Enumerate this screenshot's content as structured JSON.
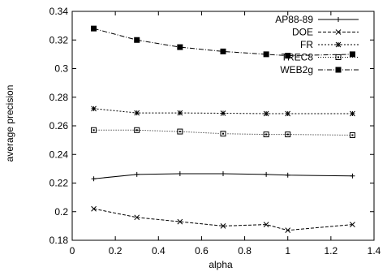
{
  "chart_data": {
    "type": "line",
    "title": "",
    "xlabel": "alpha",
    "ylabel": "average precision",
    "xlim": [
      0,
      1.4
    ],
    "ylim": [
      0.18,
      0.34
    ],
    "xticks": [
      "0",
      "0.2",
      "0.4",
      "0.6",
      "0.8",
      "1",
      "1.2",
      "1.4"
    ],
    "yticks": [
      "0.18",
      "0.2",
      "0.22",
      "0.24",
      "0.26",
      "0.28",
      "0.3",
      "0.32",
      "0.34"
    ],
    "legend_position": "top-right",
    "grid": false,
    "x": [
      0.1,
      0.3,
      0.5,
      0.7,
      0.9,
      1.0,
      1.3
    ],
    "series": [
      {
        "name": "AP88-89",
        "marker": "plus",
        "dash": "",
        "values": [
          0.223,
          0.226,
          0.2265,
          0.2265,
          0.226,
          0.2255,
          0.225
        ]
      },
      {
        "name": "DOE",
        "marker": "cross",
        "dash": "4,2",
        "values": [
          0.202,
          0.196,
          0.193,
          0.19,
          0.191,
          0.187,
          0.191
        ]
      },
      {
        "name": "FR",
        "marker": "star",
        "dash": "2,2",
        "values": [
          0.272,
          0.269,
          0.269,
          0.2688,
          0.2685,
          0.2685,
          0.2685
        ]
      },
      {
        "name": "TREC8",
        "marker": "square-open",
        "dash": "1,2",
        "values": [
          0.257,
          0.257,
          0.256,
          0.2545,
          0.254,
          0.254,
          0.2535
        ]
      },
      {
        "name": "WEB2g",
        "marker": "square-filled",
        "dash": "6,2,1,2",
        "values": [
          0.328,
          0.32,
          0.315,
          0.312,
          0.31,
          0.309,
          0.31
        ]
      }
    ]
  }
}
